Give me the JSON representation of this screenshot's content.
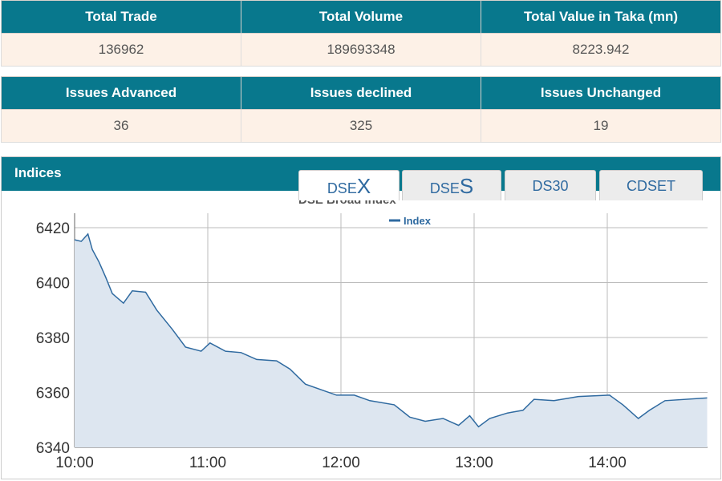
{
  "summary": {
    "headers": [
      "Total Trade",
      "Total Volume",
      "Total Value in Taka (mn)"
    ],
    "values": [
      "136962",
      "189693348",
      "8223.942"
    ]
  },
  "issues": {
    "headers": [
      "Issues Advanced",
      "Issues declined",
      "Issues Unchanged"
    ],
    "values": [
      "36",
      "325",
      "19"
    ]
  },
  "indices": {
    "title": "Indices",
    "tabs": [
      {
        "prefix": "DSE",
        "suffix": "X"
      },
      {
        "prefix": "DSE",
        "suffix": "S"
      },
      {
        "prefix": "DS30",
        "suffix": ""
      },
      {
        "prefix": "CDSET",
        "suffix": ""
      }
    ],
    "active_tab": 0
  },
  "chart_data": {
    "type": "area",
    "title": "DSE Broad Index",
    "legend": [
      "Index"
    ],
    "legend_position": "top-center",
    "xlabel": "",
    "ylabel": "",
    "ylim": [
      6340,
      6424
    ],
    "xlim_minutes_from_10": [
      0,
      285
    ],
    "x_ticks": [
      {
        "label": "10:00",
        "minutes": 0
      },
      {
        "label": "11:00",
        "minutes": 60
      },
      {
        "label": "12:00",
        "minutes": 120
      },
      {
        "label": "13:00",
        "minutes": 180
      },
      {
        "label": "14:00",
        "minutes": 240
      }
    ],
    "y_ticks": [
      "6340",
      "6360",
      "6380",
      "6400",
      "6420"
    ],
    "series": [
      {
        "name": "Index",
        "color": "#2f6aa0",
        "fill": "#dde6f0",
        "x": [
          0,
          3,
          6,
          8,
          11,
          14,
          17,
          22,
          26,
          32,
          37,
          44,
          50,
          57,
          61,
          68,
          75,
          82,
          91,
          97,
          104,
          111,
          118,
          126,
          133,
          144,
          151,
          158,
          166,
          173,
          178,
          182,
          187,
          195,
          202,
          207,
          216,
          227,
          241,
          247,
          254,
          259,
          266,
          285
        ],
        "y": [
          6415.6,
          6415,
          6417.7,
          6412,
          6407.5,
          6402,
          6396,
          6392.5,
          6397,
          6396.5,
          6390,
          6383,
          6376.5,
          6375,
          6378,
          6375,
          6374.5,
          6372,
          6371.5,
          6368.5,
          6363,
          6361,
          6359,
          6359,
          6357,
          6355.5,
          6351,
          6349.5,
          6350.5,
          6348,
          6351.5,
          6347.5,
          6350.5,
          6352.5,
          6353.5,
          6357.5,
          6357,
          6358.5,
          6359,
          6355.5,
          6350.5,
          6353.5,
          6357,
          6358
        ]
      }
    ]
  }
}
